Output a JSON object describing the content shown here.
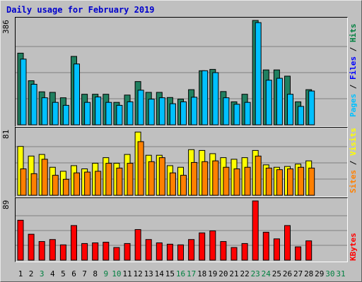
{
  "title": "Daily usage for February 2019",
  "legend": {
    "pages": "Pages",
    "files": "Files",
    "hits": "Hits",
    "sites": "Sites",
    "visits": "Visits",
    "kbytes": "KBytes",
    "sep": " / "
  },
  "colors": {
    "background": "#c0c0c0",
    "title": "#0000cc",
    "pages": "#00c0ff",
    "files": "#0000ff",
    "hits": "#008040",
    "hits_bar": "#208060",
    "sites": "#ff8000",
    "visits": "#ffff00",
    "kbytes": "#ff0000",
    "weekday_label": "#000000",
    "weekend_label": "#008040"
  },
  "chart_data": [
    {
      "type": "bar",
      "title": "Daily usage for February 2019",
      "ymax_label": "386",
      "ylim": [
        0,
        386
      ],
      "categories": [
        "1",
        "2",
        "3",
        "4",
        "5",
        "6",
        "7",
        "8",
        "9",
        "10",
        "11",
        "12",
        "13",
        "14",
        "15",
        "16",
        "17",
        "18",
        "19",
        "20",
        "21",
        "22",
        "23",
        "24",
        "25",
        "26",
        "27",
        "28",
        "29",
        "30",
        "31"
      ],
      "series": [
        {
          "name": "Hits",
          "values": [
            265,
            163,
            122,
            120,
            100,
            253,
            113,
            113,
            113,
            83,
            110,
            160,
            120,
            120,
            101,
            95,
            130,
            200,
            205,
            123,
            85,
            113,
            386,
            203,
            203,
            180,
            85,
            130,
            0,
            0,
            0
          ]
        },
        {
          "name": "Files",
          "values": [
            243,
            150,
            100,
            83,
            72,
            225,
            83,
            103,
            83,
            72,
            85,
            128,
            95,
            100,
            78,
            85,
            102,
            200,
            193,
            100,
            76,
            83,
            378,
            165,
            172,
            113,
            68,
            125,
            0,
            0,
            0
          ]
        },
        {
          "name": "Pages",
          "values": [
            243,
            150,
            100,
            83,
            72,
            225,
            83,
            103,
            83,
            72,
            85,
            128,
            95,
            100,
            78,
            85,
            102,
            200,
            193,
            100,
            76,
            83,
            378,
            165,
            172,
            113,
            68,
            125,
            0,
            0,
            0
          ]
        }
      ]
    },
    {
      "type": "bar",
      "ymax_label": "81",
      "ylim": [
        0,
        81
      ],
      "categories": [
        "1",
        "2",
        "3",
        "4",
        "5",
        "6",
        "7",
        "8",
        "9",
        "10",
        "11",
        "12",
        "13",
        "14",
        "15",
        "16",
        "17",
        "18",
        "19",
        "20",
        "21",
        "22",
        "23",
        "24",
        "25",
        "26",
        "27",
        "28",
        "29",
        "30",
        "31"
      ],
      "series": [
        {
          "name": "Visits",
          "values": [
            61,
            49,
            51,
            35,
            30,
            37,
            33,
            40,
            47,
            40,
            51,
            79,
            50,
            50,
            37,
            35,
            57,
            56,
            52,
            47,
            45,
            47,
            56,
            38,
            35,
            36,
            39,
            43,
            0,
            0,
            0
          ]
        },
        {
          "name": "Sites",
          "values": [
            33,
            27,
            45,
            25,
            20,
            28,
            29,
            30,
            40,
            34,
            40,
            67,
            42,
            47,
            28,
            25,
            41,
            42,
            43,
            35,
            33,
            35,
            49,
            34,
            32,
            33,
            35,
            34,
            0,
            0,
            0
          ]
        }
      ]
    },
    {
      "type": "bar",
      "ymax_label": "89",
      "ylim": [
        0,
        89
      ],
      "categories": [
        "1",
        "2",
        "3",
        "4",
        "5",
        "6",
        "7",
        "8",
        "9",
        "10",
        "11",
        "12",
        "13",
        "14",
        "15",
        "16",
        "17",
        "18",
        "19",
        "20",
        "21",
        "22",
        "23",
        "24",
        "25",
        "26",
        "27",
        "28",
        "29",
        "30",
        "31"
      ],
      "series": [
        {
          "name": "KBytes",
          "values": [
            60,
            39,
            28,
            31,
            23,
            52,
            25,
            26,
            27,
            19,
            25,
            46,
            31,
            26,
            24,
            23,
            31,
            41,
            44,
            28,
            19,
            25,
            89,
            42,
            32,
            52,
            20,
            29,
            0,
            0,
            0
          ]
        }
      ]
    }
  ],
  "x_labels": [
    {
      "text": "1",
      "weekend": false
    },
    {
      "text": "2",
      "weekend": false
    },
    {
      "text": "3",
      "weekend": true
    },
    {
      "text": "4",
      "weekend": false
    },
    {
      "text": "5",
      "weekend": false
    },
    {
      "text": "6",
      "weekend": false
    },
    {
      "text": "7",
      "weekend": false
    },
    {
      "text": "8",
      "weekend": false
    },
    {
      "text": "9",
      "weekend": true
    },
    {
      "text": "10",
      "weekend": true
    },
    {
      "text": "11",
      "weekend": false
    },
    {
      "text": "12",
      "weekend": false
    },
    {
      "text": "13",
      "weekend": false
    },
    {
      "text": "14",
      "weekend": false
    },
    {
      "text": "15",
      "weekend": false
    },
    {
      "text": "16",
      "weekend": true
    },
    {
      "text": "17",
      "weekend": true
    },
    {
      "text": "18",
      "weekend": false
    },
    {
      "text": "19",
      "weekend": false
    },
    {
      "text": "20",
      "weekend": false
    },
    {
      "text": "21",
      "weekend": false
    },
    {
      "text": "22",
      "weekend": false
    },
    {
      "text": "23",
      "weekend": true
    },
    {
      "text": "24",
      "weekend": true
    },
    {
      "text": "25",
      "weekend": false
    },
    {
      "text": "26",
      "weekend": false
    },
    {
      "text": "27",
      "weekend": false
    },
    {
      "text": "28",
      "weekend": false
    },
    {
      "text": "29",
      "weekend": false
    },
    {
      "text": "30",
      "weekend": true
    },
    {
      "text": "31",
      "weekend": true
    }
  ]
}
